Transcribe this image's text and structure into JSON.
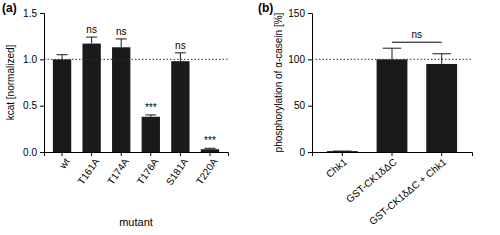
{
  "chart_data": [
    {
      "type": "bar",
      "panel_label": "(a)",
      "categories": [
        "wt",
        "T161A",
        "T174A",
        "T176A",
        "S181A",
        "T220A"
      ],
      "values": [
        1.0,
        1.17,
        1.13,
        0.38,
        0.98,
        0.03
      ],
      "errors": [
        0.05,
        0.07,
        0.09,
        0.02,
        0.09,
        0.01
      ],
      "annotations": [
        null,
        "ns",
        "ns",
        "***",
        "ns",
        "***"
      ],
      "reference_line": 1.0,
      "color": "#1a1a1a",
      "x_label": "mutant",
      "y_label": "kcat [normalized]",
      "ylim": [
        0,
        1.5
      ],
      "yticks": [
        {
          "value": 0,
          "label": "0.0"
        },
        {
          "value": 0.5,
          "label": "0.5"
        },
        {
          "value": 1,
          "label": "1.0"
        },
        {
          "value": 1.5,
          "label": "1.5"
        }
      ],
      "grid": false
    },
    {
      "type": "bar",
      "panel_label": "(b)",
      "categories": [
        "Chk1",
        "GST-CK1δΔC",
        "GST-CK1δΔC + Chk1"
      ],
      "values": [
        1,
        100,
        95
      ],
      "errors": [
        0,
        12,
        11
      ],
      "comparisons": [
        {
          "text": "ns",
          "between": [
            1,
            2
          ]
        }
      ],
      "reference_line": 100,
      "color": "#1a1a1a",
      "y_label": "phosphorylation of α-casein [%]",
      "ylim": [
        0,
        150
      ],
      "yticks": [
        0,
        50,
        100,
        150
      ],
      "grid": false
    }
  ]
}
